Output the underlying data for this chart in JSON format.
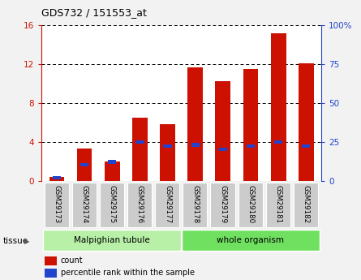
{
  "title": "GDS732 / 151553_at",
  "samples": [
    "GSM29173",
    "GSM29174",
    "GSM29175",
    "GSM29176",
    "GSM29177",
    "GSM29178",
    "GSM29179",
    "GSM29180",
    "GSM29181",
    "GSM29182"
  ],
  "count_values": [
    0.4,
    3.3,
    2.0,
    6.5,
    5.8,
    11.7,
    10.2,
    11.5,
    15.2,
    12.1
  ],
  "percentile_values": [
    2,
    10,
    12,
    25,
    22,
    23,
    20,
    22,
    25,
    22
  ],
  "tissue_groups": [
    {
      "label": "Malpighian tubule",
      "start": 0,
      "end": 5,
      "color": "#b8f0a8"
    },
    {
      "label": "whole organism",
      "start": 5,
      "end": 10,
      "color": "#70e060"
    }
  ],
  "left_ylim": [
    0,
    16
  ],
  "right_ylim": [
    0,
    100
  ],
  "left_yticks": [
    0,
    4,
    8,
    12,
    16
  ],
  "right_yticks": [
    0,
    25,
    50,
    75,
    100
  ],
  "right_yticklabels": [
    "0",
    "25",
    "50",
    "75",
    "100%"
  ],
  "bar_color": "#cc1100",
  "blue_color": "#2244cc",
  "bg_color": "#f2f2f2",
  "plot_bg": "#ffffff",
  "tick_label_bg": "#cccccc",
  "grid_color": "#000000",
  "left_axis_color": "#cc1100",
  "right_axis_color": "#2244cc"
}
